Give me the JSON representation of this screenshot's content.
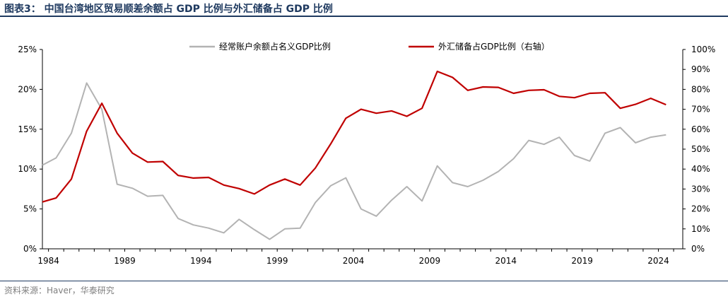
{
  "title": "图表3： 中国台湾地区贸易顺差余额占 GDP 比例与外汇储备占 GDP 比例",
  "source": "资料来源：Haver，华泰研究",
  "chart_data": {
    "type": "line",
    "x_ticks": [
      "1984",
      "1989",
      "1994",
      "1999",
      "2004",
      "2009",
      "2014",
      "2019",
      "2024"
    ],
    "xlim": [
      1983.6,
      2025.6
    ],
    "y_left": {
      "ticks": [
        "0%",
        "5%",
        "10%",
        "15%",
        "20%",
        "25%"
      ],
      "ylim": [
        0,
        25
      ]
    },
    "y_right": {
      "ticks": [
        "0%",
        "10%",
        "20%",
        "30%",
        "40%",
        "50%",
        "60%",
        "70%",
        "80%",
        "90%",
        "100%"
      ],
      "ylim": [
        0,
        100
      ]
    },
    "grid": false,
    "legend_position": "top",
    "series": [
      {
        "name": "经常账户余额占名义GDP比例",
        "axis": "left",
        "color": "#b3b3b3",
        "x": [
          1983.6,
          1984.5,
          1985.5,
          1986.5,
          1987.5,
          1988.5,
          1989.5,
          1990.5,
          1991.5,
          1992.5,
          1993.5,
          1994.5,
          1995.5,
          1996.5,
          1997.5,
          1998.5,
          1999.5,
          2000.5,
          2001.5,
          2002.5,
          2003.5,
          2004.5,
          2005.5,
          2006.5,
          2007.5,
          2008.5,
          2009.5,
          2010.5,
          2011.5,
          2012.5,
          2013.5,
          2014.5,
          2015.5,
          2016.5,
          2017.5,
          2018.5,
          2019.5,
          2020.5,
          2021.5,
          2022.5,
          2023.5,
          2024.5
        ],
        "values": [
          10.5,
          11.4,
          14.5,
          20.8,
          17.5,
          8.1,
          7.6,
          6.6,
          6.7,
          3.8,
          3.0,
          2.6,
          2.0,
          3.7,
          2.4,
          1.2,
          2.5,
          2.6,
          5.8,
          7.9,
          8.9,
          5.0,
          4.1,
          6.1,
          7.8,
          6.0,
          10.4,
          8.3,
          7.8,
          8.6,
          9.7,
          11.3,
          13.6,
          13.1,
          14.0,
          11.7,
          11.0,
          14.5,
          15.2,
          13.3,
          14.0,
          14.3
        ]
      },
      {
        "name": "外汇储备占GDP比例（右轴）",
        "axis": "right",
        "color": "#c00000",
        "x": [
          1983.6,
          1984.5,
          1985.5,
          1986.5,
          1987.5,
          1988.5,
          1989.5,
          1990.5,
          1991.5,
          1992.5,
          1993.5,
          1994.5,
          1995.5,
          1996.5,
          1997.5,
          1998.5,
          1999.5,
          2000.5,
          2001.5,
          2002.5,
          2003.5,
          2004.5,
          2005.5,
          2006.5,
          2007.5,
          2008.5,
          2009.5,
          2010.5,
          2011.5,
          2012.5,
          2013.5,
          2014.5,
          2015.5,
          2016.5,
          2017.5,
          2018.5,
          2019.5,
          2020.5,
          2021.5,
          2022.5,
          2023.5,
          2024.5
        ],
        "values": [
          23.5,
          25.5,
          35.0,
          59.0,
          73.0,
          58.0,
          48.0,
          43.5,
          43.8,
          36.8,
          35.5,
          35.8,
          32.0,
          30.2,
          27.5,
          32.0,
          35.0,
          32.0,
          40.5,
          52.5,
          65.5,
          70.0,
          68.0,
          69.2,
          66.5,
          70.5,
          89.0,
          86.0,
          79.5,
          81.2,
          81.0,
          78.0,
          79.5,
          79.8,
          76.5,
          75.8,
          78.0,
          78.3,
          70.5,
          72.5,
          75.5,
          72.3
        ]
      }
    ]
  }
}
